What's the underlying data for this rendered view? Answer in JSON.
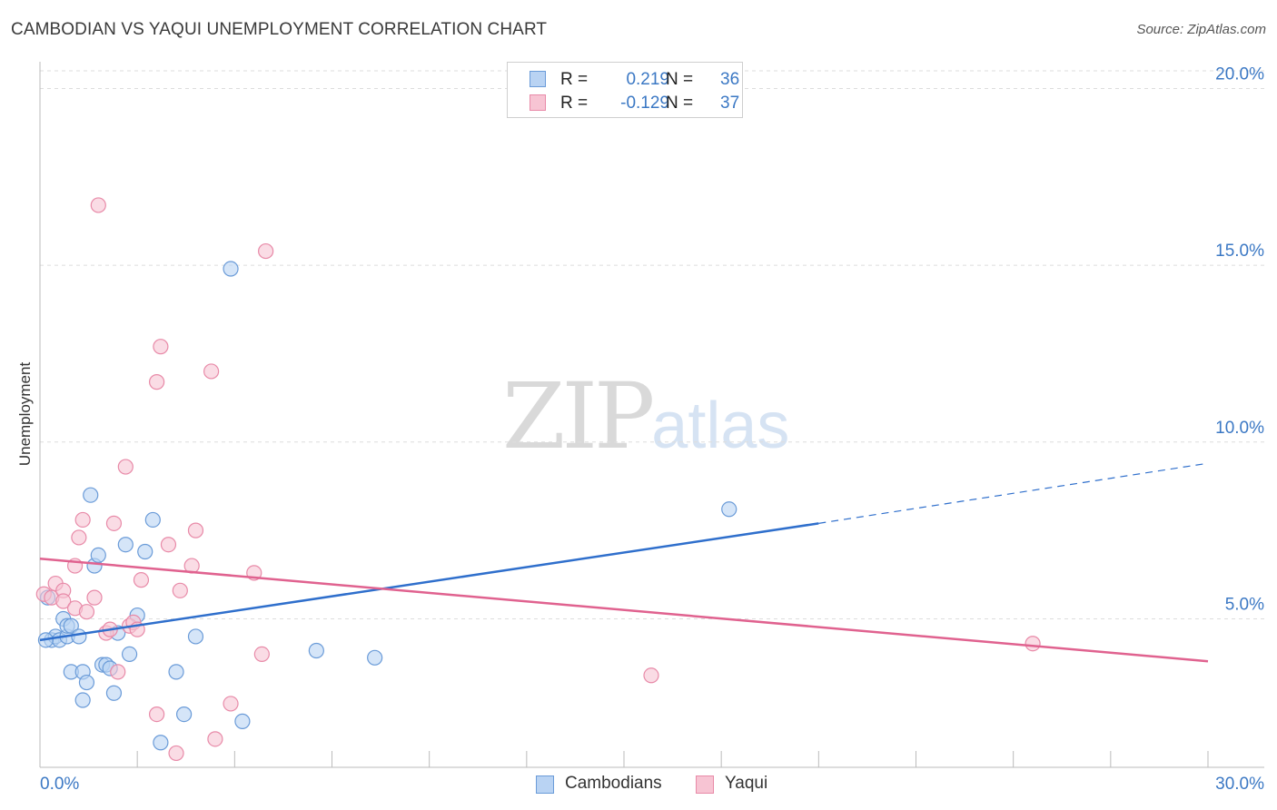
{
  "title": "CAMBODIAN VS YAQUI UNEMPLOYMENT CORRELATION CHART",
  "source": "Source: ZipAtlas.com",
  "watermark": {
    "zip": "ZIP",
    "atlas": "atlas"
  },
  "legend_top": {
    "rows": [
      {
        "r_label": "R =",
        "r_value": "0.219",
        "n_label": "N =",
        "n_value": "36"
      },
      {
        "r_label": "R =",
        "r_value": "-0.129",
        "n_label": "N =",
        "n_value": "37"
      }
    ]
  },
  "legend_bottom": {
    "series1": "Cambodians",
    "series2": "Yaqui"
  },
  "colors": {
    "blue_fill": "#b9d3f3",
    "blue_stroke": "#6a9bd8",
    "blue_line": "#2f6fcc",
    "pink_fill": "#f7c4d3",
    "pink_stroke": "#e88aa8",
    "pink_line": "#e0628f",
    "tick_text": "#3b78c4",
    "grid": "#dddddd"
  },
  "chart_data": {
    "type": "scatter",
    "title": "CAMBODIAN VS YAQUI UNEMPLOYMENT CORRELATION CHART",
    "xlabel": "",
    "ylabel": "Unemployment",
    "xlim": [
      0,
      30
    ],
    "ylim": [
      0.8,
      20.5
    ],
    "x_tick_labels": [
      {
        "value": 0,
        "label": "0.0%"
      },
      {
        "value": 30,
        "label": "30.0%"
      }
    ],
    "y_ticks": [
      {
        "value": 5,
        "label": "5.0%"
      },
      {
        "value": 10,
        "label": "10.0%"
      },
      {
        "value": 15,
        "label": "15.0%"
      },
      {
        "value": 20,
        "label": "20.0%"
      }
    ],
    "series": [
      {
        "name": "Cambodians",
        "r": 0.219,
        "n": 36,
        "points": [
          [
            0.2,
            5.6
          ],
          [
            0.3,
            4.4
          ],
          [
            0.4,
            4.5
          ],
          [
            0.5,
            4.4
          ],
          [
            0.6,
            5.0
          ],
          [
            0.7,
            4.5
          ],
          [
            0.8,
            3.5
          ],
          [
            0.7,
            4.8
          ],
          [
            0.8,
            4.8
          ],
          [
            1.0,
            4.5
          ],
          [
            1.1,
            3.5
          ],
          [
            1.2,
            3.2
          ],
          [
            1.1,
            2.7
          ],
          [
            1.3,
            8.5
          ],
          [
            1.4,
            6.5
          ],
          [
            1.5,
            6.8
          ],
          [
            1.6,
            3.7
          ],
          [
            1.7,
            3.7
          ],
          [
            1.8,
            3.6
          ],
          [
            1.9,
            2.9
          ],
          [
            2.0,
            4.6
          ],
          [
            2.2,
            7.1
          ],
          [
            2.3,
            4.0
          ],
          [
            2.5,
            5.1
          ],
          [
            2.7,
            6.9
          ],
          [
            2.9,
            7.8
          ],
          [
            3.1,
            1.5
          ],
          [
            3.5,
            3.5
          ],
          [
            3.7,
            2.3
          ],
          [
            4.0,
            4.5
          ],
          [
            4.9,
            14.9
          ],
          [
            5.2,
            2.1
          ],
          [
            7.1,
            4.1
          ],
          [
            8.6,
            3.9
          ],
          [
            17.7,
            8.1
          ],
          [
            0.15,
            4.4
          ]
        ],
        "trend": {
          "x0": 0,
          "y0": 4.4,
          "x1": 20,
          "y1": 7.7,
          "x_dash_end": 30,
          "y_dash_end": 9.4
        }
      },
      {
        "name": "Yaqui",
        "r": -0.129,
        "n": 37,
        "points": [
          [
            0.1,
            5.7
          ],
          [
            0.3,
            5.6
          ],
          [
            0.4,
            6.0
          ],
          [
            0.6,
            5.8
          ],
          [
            0.6,
            5.5
          ],
          [
            0.9,
            5.3
          ],
          [
            0.9,
            6.5
          ],
          [
            1.0,
            7.3
          ],
          [
            1.1,
            7.8
          ],
          [
            1.2,
            5.2
          ],
          [
            1.4,
            5.6
          ],
          [
            1.5,
            16.7
          ],
          [
            1.7,
            4.6
          ],
          [
            1.8,
            4.7
          ],
          [
            1.9,
            7.7
          ],
          [
            2.0,
            3.5
          ],
          [
            2.2,
            9.3
          ],
          [
            2.3,
            4.8
          ],
          [
            2.4,
            4.9
          ],
          [
            2.5,
            4.7
          ],
          [
            2.6,
            6.1
          ],
          [
            3.0,
            11.7
          ],
          [
            3.1,
            12.7
          ],
          [
            3.0,
            2.3
          ],
          [
            3.3,
            7.1
          ],
          [
            3.5,
            1.2
          ],
          [
            3.6,
            5.8
          ],
          [
            3.9,
            6.5
          ],
          [
            4.0,
            7.5
          ],
          [
            4.4,
            12.0
          ],
          [
            4.5,
            1.6
          ],
          [
            4.9,
            2.6
          ],
          [
            5.5,
            6.3
          ],
          [
            5.7,
            4.0
          ],
          [
            5.8,
            15.4
          ],
          [
            15.7,
            3.4
          ],
          [
            25.5,
            4.3
          ]
        ],
        "trend": {
          "x0": 0,
          "y0": 6.7,
          "x1": 30,
          "y1": 3.8
        }
      }
    ]
  }
}
